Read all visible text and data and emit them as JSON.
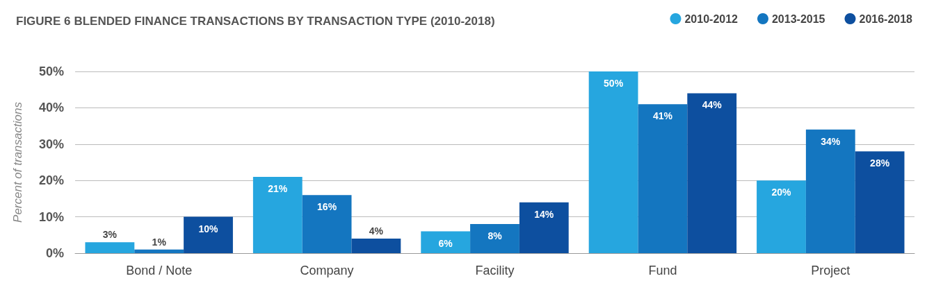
{
  "chart_data": {
    "type": "bar",
    "title": "FIGURE 6 BLENDED FINANCE TRANSACTIONS BY TRANSACTION TYPE (2010-2018)",
    "ylabel": "Percent of transactions",
    "categories": [
      "Bond / Note",
      "Company",
      "Facility",
      "Fund",
      "Project"
    ],
    "series": [
      {
        "name": "2010-2012",
        "color": "#26a6df",
        "values": [
          3,
          21,
          6,
          50,
          20
        ],
        "value_labels": [
          "3%",
          "21%",
          "6%",
          "50%",
          "20%"
        ]
      },
      {
        "name": "2013-2015",
        "color": "#1476c0",
        "values": [
          1,
          16,
          8,
          41,
          34
        ],
        "value_labels": [
          "1%",
          "16%",
          "8%",
          "41%",
          "34%"
        ]
      },
      {
        "name": "2016-2018",
        "color": "#0d4f9f",
        "values": [
          10,
          4,
          14,
          44,
          28
        ],
        "value_labels": [
          "10%",
          "4%",
          "14%",
          "44%",
          "28%"
        ]
      }
    ],
    "ylim": [
      0,
      50
    ],
    "yticks": [
      {
        "value": 0,
        "label": "0%"
      },
      {
        "value": 10,
        "label": "10%"
      },
      {
        "value": 20,
        "label": "20%"
      },
      {
        "value": 30,
        "label": "30%"
      },
      {
        "value": 40,
        "label": "40%"
      },
      {
        "value": 50,
        "label": "50%"
      }
    ],
    "grid": "y",
    "legend": "top right"
  }
}
